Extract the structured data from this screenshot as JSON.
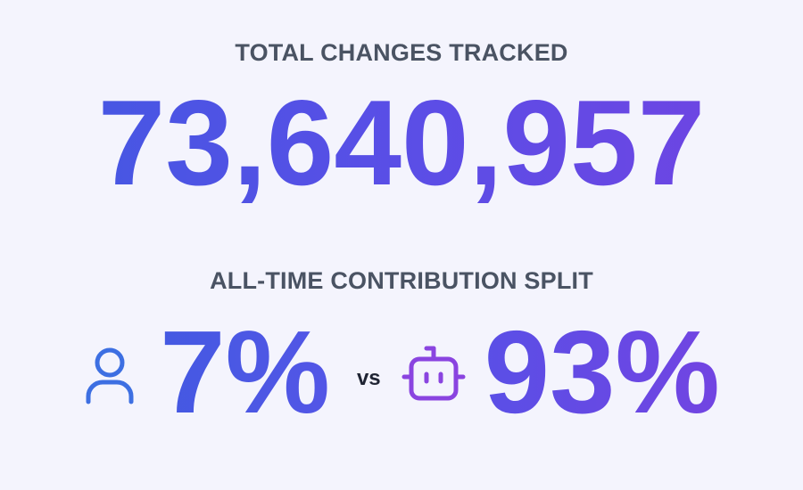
{
  "total": {
    "label": "TOTAL CHANGES TRACKED",
    "value": "73,640,957"
  },
  "split": {
    "label": "ALL-TIME CONTRIBUTION SPLIT",
    "human": "7%",
    "versus": "vs",
    "bot": "93%"
  }
}
